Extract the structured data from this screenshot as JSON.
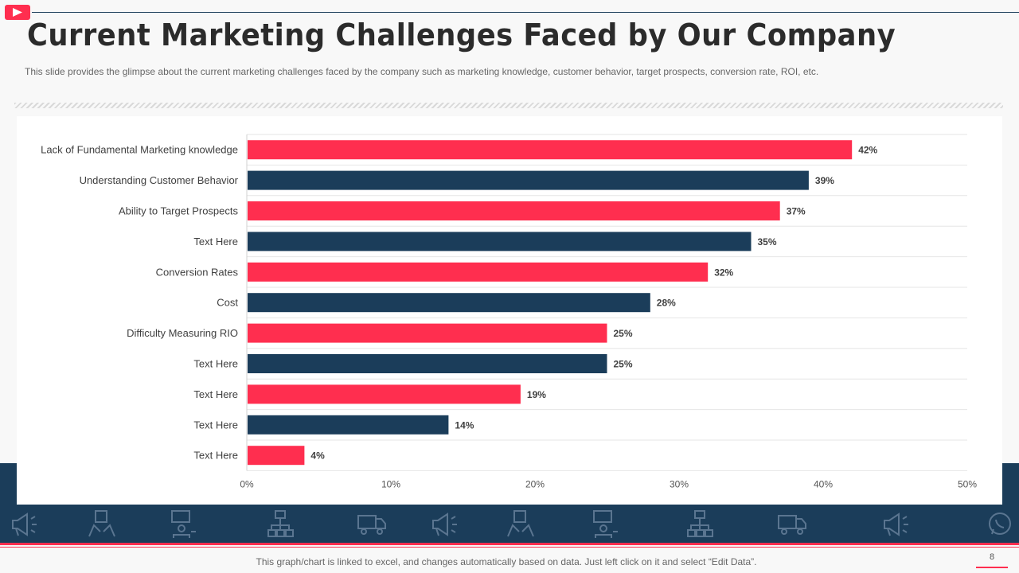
{
  "header": {
    "title": "Current Marketing Challenges Faced by Our Company",
    "subtitle": "This slide provides  the glimpse about the current marketing challenges faced by the company such as marketing knowledge,  customer behavior,  target prospects, conversion  rate, ROI,  etc."
  },
  "icons": {
    "video_badge": "play-icon",
    "decor_row": [
      "megaphone-icon",
      "box-hands-icon",
      "presenter-icon",
      "network-icon",
      "truck-icon",
      "megaphone-icon",
      "box-hands-icon",
      "presenter-icon",
      "network-icon",
      "truck-icon",
      "megaphone-icon",
      "whatsapp-icon"
    ]
  },
  "colors": {
    "accent": "#ff2e4f",
    "navy": "#1b3d5a",
    "title": "#2b2b2b",
    "background": "#f8f8f8"
  },
  "chart_data": {
    "type": "bar",
    "orientation": "horizontal",
    "categories": [
      "Lack of Fundamental Marketing knowledge",
      "Understanding Customer Behavior",
      "Ability to Target Prospects",
      "Text Here",
      "Conversion Rates",
      "Cost",
      "Difficulty Measuring RIO",
      "Text Here",
      "Text Here",
      "Text Here",
      "Text Here"
    ],
    "values": [
      42,
      39,
      37,
      35,
      32,
      28,
      25,
      25,
      19,
      14,
      4
    ],
    "value_labels": [
      "42%",
      "39%",
      "37%",
      "35%",
      "32%",
      "28%",
      "25%",
      "25%",
      "19%",
      "14%",
      "4%"
    ],
    "bar_colors": [
      "#ff2e4f",
      "#1b3d5a",
      "#ff2e4f",
      "#1b3d5a",
      "#ff2e4f",
      "#1b3d5a",
      "#ff2e4f",
      "#1b3d5a",
      "#ff2e4f",
      "#1b3d5a",
      "#ff2e4f"
    ],
    "xlim": [
      0,
      50
    ],
    "x_ticks": [
      0,
      10,
      20,
      30,
      40,
      50
    ],
    "x_tick_labels": [
      "0%",
      "10%",
      "20%",
      "30%",
      "40%",
      "50%"
    ],
    "title": "",
    "xlabel": "",
    "ylabel": "",
    "grid": true,
    "legend": "none"
  },
  "footer": {
    "note": "This graph/chart is linked to excel,  and changes automatically based on data. Just left click on it and select “Edit Data”.",
    "page_number": "8"
  }
}
